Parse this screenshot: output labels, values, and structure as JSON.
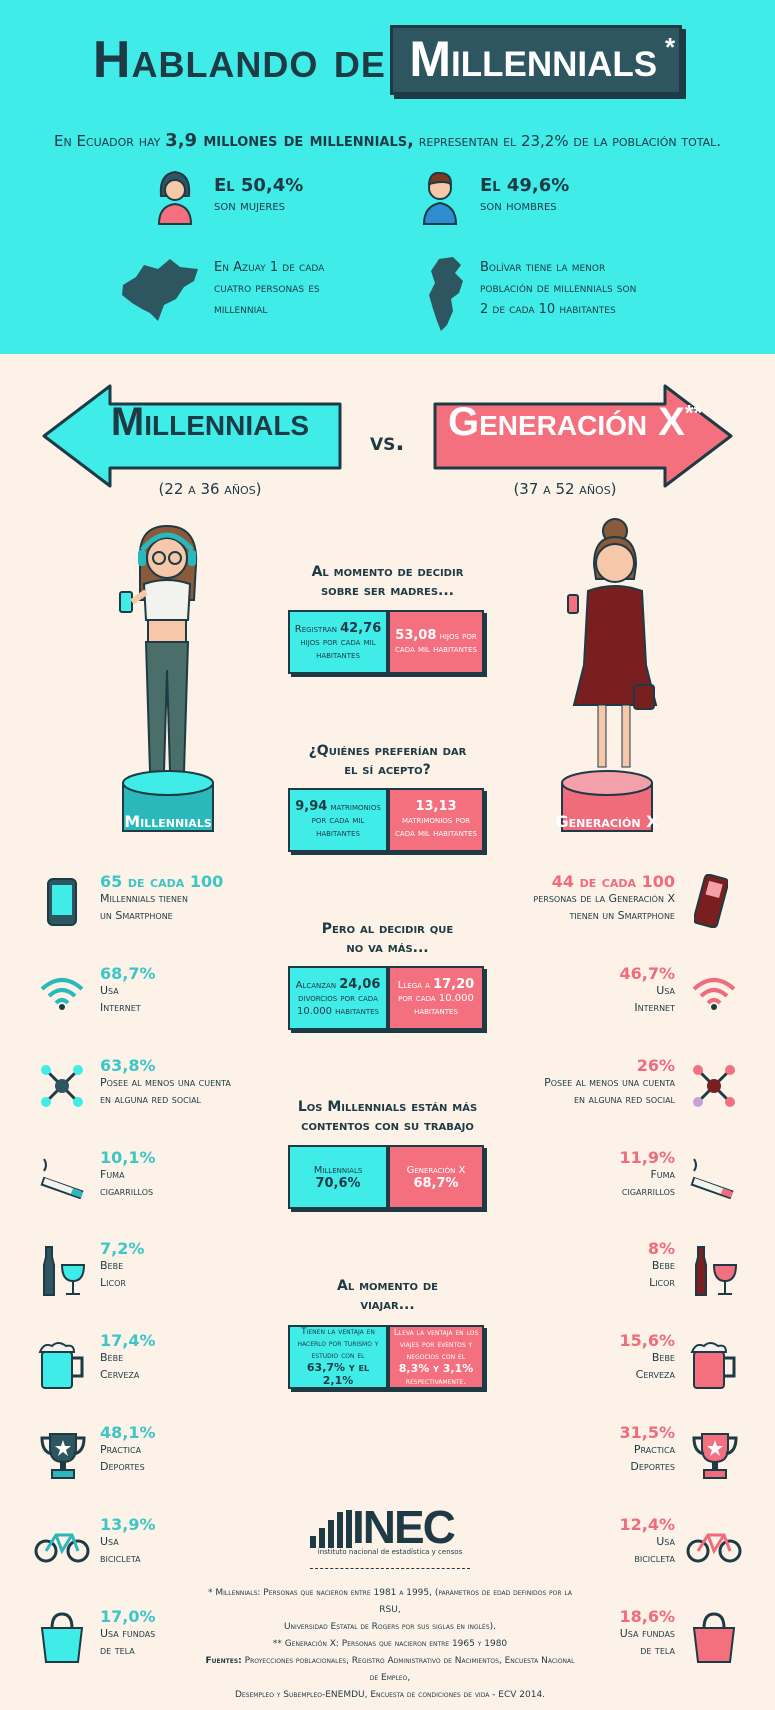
{
  "title": {
    "part1": "Hablando de",
    "part2": "Millennials",
    "mark": "*"
  },
  "intro": {
    "pre": "En Ecuador hay",
    "count": "3,9 millones de millennials,",
    "post": "representan el  23,2% de la población total."
  },
  "gender": [
    {
      "pct": "El 50,4%",
      "label": "son mujeres"
    },
    {
      "pct": "El 49,6%",
      "label": "son hombres"
    }
  ],
  "provinces": [
    {
      "l1": "En Azuay 1 de cada",
      "l2": "cuatro personas es",
      "l3": "millennial"
    },
    {
      "l1": "Bolívar tiene la menor",
      "l2": "población de millennials son",
      "l3": "2 de cada 10 habitantes"
    }
  ],
  "versus": {
    "left": "Millennials",
    "vs": "vs.",
    "right": "Generación X",
    "right_mark": "**",
    "left_age": "(22 a 36 años)",
    "right_age": "(37 a 52 años)"
  },
  "platforms": {
    "left": "Millennials",
    "right": "Generación X"
  },
  "questions": [
    {
      "title1": "Al momento de decidir",
      "title2": "sobre ser madres...",
      "left": {
        "pre": "Registran",
        "num": "42,76",
        "post": "hijos por cada mil habitantes"
      },
      "right": {
        "pre": "",
        "num": "53,08",
        "post": "hijos por cada mil habitantes"
      }
    },
    {
      "title1": "¿Quiénes preferían dar",
      "title2": "el sí acepto?",
      "left": {
        "pre": "",
        "num": "9,94",
        "post": "matrimonios por cada mil habitantes"
      },
      "right": {
        "pre": "",
        "num": "13,13",
        "post": "matrimonios por cada mil habitantes"
      }
    },
    {
      "title1": "Pero al decidir que",
      "title2": "no va más...",
      "left": {
        "pre": "Alcanzan",
        "num": "24,06",
        "post": "divorcios por cada 10.000 habitantes"
      },
      "right": {
        "pre": "Llega a",
        "num": "17,20",
        "post": "por cada 10.000 habitantes"
      }
    },
    {
      "title1": "Los Millennials están más",
      "title2": "contentos con su trabajo",
      "left": {
        "pre": "Millennials",
        "num": "70,6%",
        "post": ""
      },
      "right": {
        "pre": "Generación X",
        "num": "68,7%",
        "post": ""
      }
    },
    {
      "title1": "Al momento de",
      "title2": "viajar...",
      "left": {
        "pre": "Tienen la ventaja en hacerlo por turismo y estudio con el",
        "num": "63,7% y el 2,1%",
        "post": ""
      },
      "right": {
        "pre": "Lleva la ventaja en los viajes por eventos y negocios con el",
        "num": "8,3% y 3,1%",
        "post": "respectivamente."
      }
    }
  ],
  "left_stats": [
    {
      "pct": "65 de cada 100",
      "l1": "Millennials tienen",
      "l2": "un Smartphone",
      "icon": "smartphone-icon"
    },
    {
      "pct": "68,7%",
      "l1": "Usa",
      "l2": "Internet",
      "icon": "wifi-icon"
    },
    {
      "pct": "63,8%",
      "l1": "Posee al menos una cuenta",
      "l2": "en alguna red social",
      "icon": "network-icon"
    },
    {
      "pct": "10,1%",
      "l1": "Fuma",
      "l2": "cigarrillos",
      "icon": "cigarette-icon"
    },
    {
      "pct": "7,2%",
      "l1": "Bebe",
      "l2": "Licor",
      "icon": "liquor-icon"
    },
    {
      "pct": "17,4%",
      "l1": "Bebe",
      "l2": "Cerveza",
      "icon": "beer-icon"
    },
    {
      "pct": "48,1%",
      "l1": "Practica",
      "l2": "Deportes",
      "icon": "trophy-icon"
    },
    {
      "pct": "13,9%",
      "l1": "Usa",
      "l2": "bicicleta",
      "icon": "bicycle-icon"
    },
    {
      "pct": "17,0%",
      "l1": "Usa fundas",
      "l2": "de tela",
      "icon": "bag-icon"
    }
  ],
  "right_stats": [
    {
      "pct": "44 de cada 100",
      "l1": "personas de la Generación X",
      "l2": "tienen un Smartphone",
      "icon": "cellphone-icon"
    },
    {
      "pct": "46,7%",
      "l1": "Usa",
      "l2": "Internet",
      "icon": "wifi-icon"
    },
    {
      "pct": "26%",
      "l1": "Posee al menos una cuenta",
      "l2": "en alguna red social",
      "icon": "network-icon"
    },
    {
      "pct": "11,9%",
      "l1": "Fuma",
      "l2": "cigarrillos",
      "icon": "cigarette-icon"
    },
    {
      "pct": "8%",
      "l1": "Bebe",
      "l2": "Licor",
      "icon": "liquor-icon"
    },
    {
      "pct": "15,6%",
      "l1": "Bebe",
      "l2": "Cerveza",
      "icon": "beer-icon"
    },
    {
      "pct": "31,5%",
      "l1": "Practica",
      "l2": "Deportes",
      "icon": "trophy-icon"
    },
    {
      "pct": "12,4%",
      "l1": "Usa",
      "l2": "bicicleta",
      "icon": "bicycle-icon"
    },
    {
      "pct": "18,6%",
      "l1": "Usa fundas",
      "l2": "de tela",
      "icon": "bag-icon"
    }
  ],
  "logo": {
    "name": "INEC",
    "sub": "instituto nacional de estadística y censos"
  },
  "footnotes": {
    "n1": "* Millennials: Personas que nacieron entre 1981 a 1995, (parámetros de edad definidos por la RSU,",
    "n2": "Universidad Estatal de Rogers por sus siglas en inglés).",
    "n3": "** Generación X: Personas que nacieron entre 1965 y 1980",
    "src_label": "Fuentes:",
    "src": "Proyecciones poblacionales, Registro Administrativo de Nacimientos, Encuesta Nacional de Empleo,",
    "src2": "Desempleo y Subempleo-ENEMDU, Encuesta de condiciones de vida - ECV 2014."
  },
  "colors": {
    "cyan": "#40ece8",
    "pink": "#f4707e",
    "dark": "#1e3a44",
    "cream": "#fcf2e8"
  }
}
